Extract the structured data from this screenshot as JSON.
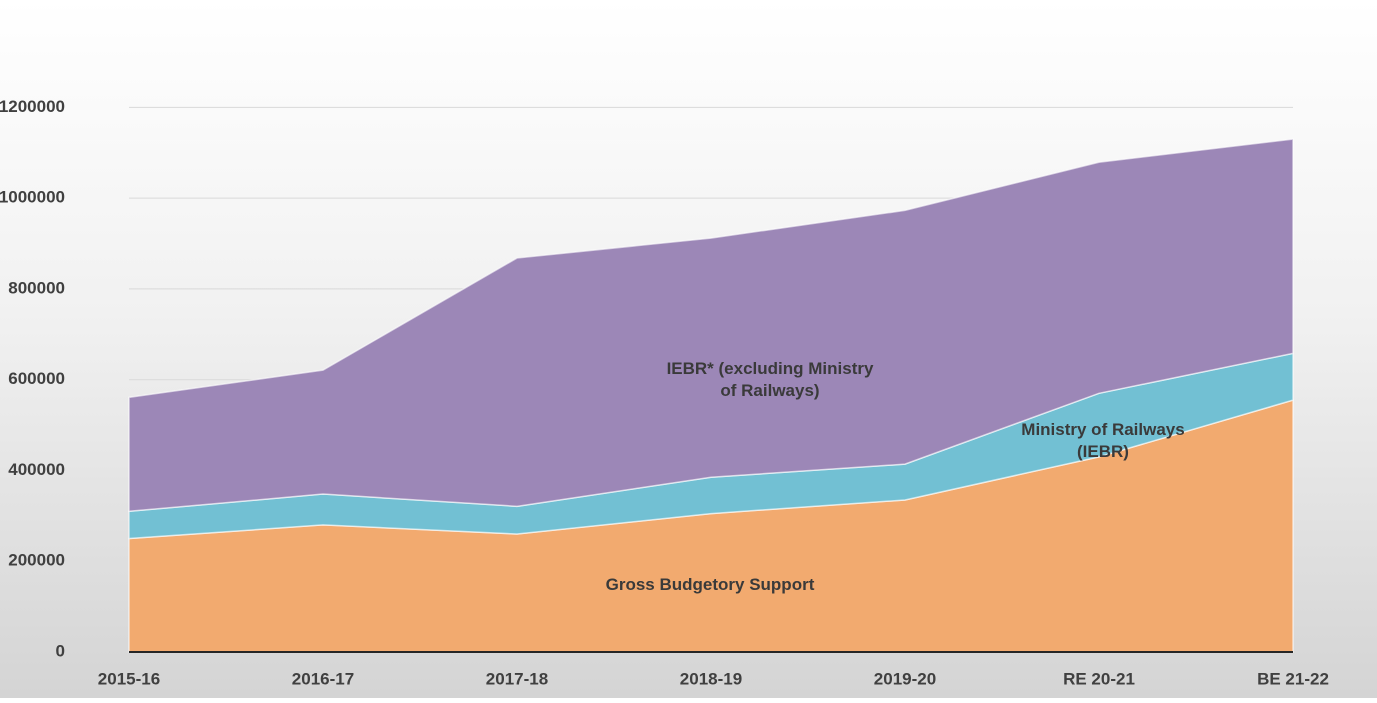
{
  "chart_data": {
    "type": "stacked-area",
    "categories": [
      "2015-16",
      "2016-17",
      "2017-18",
      "2018-19",
      "2019-20",
      "RE 20-21",
      "BE 21-22"
    ],
    "series": [
      {
        "name": "Gross Budgetory Support",
        "color": "#f2aa6f",
        "values": [
          250000,
          280000,
          260000,
          305000,
          335000,
          430000,
          555000
        ]
      },
      {
        "name": "Ministry of Railways (IEBR)",
        "color": "#72c0d3",
        "values": [
          60000,
          68000,
          61000,
          80000,
          79000,
          140000,
          103000
        ]
      },
      {
        "name": "IEBR* (excluding Ministry of Railways)",
        "color": "#9c87b7",
        "values": [
          251000,
          273000,
          547000,
          527000,
          559000,
          509000,
          472000
        ]
      }
    ],
    "ylim": [
      0,
      1300000
    ],
    "yticks": [
      0,
      200000,
      400000,
      600000,
      800000,
      1000000,
      1200000
    ],
    "grid": true
  }
}
